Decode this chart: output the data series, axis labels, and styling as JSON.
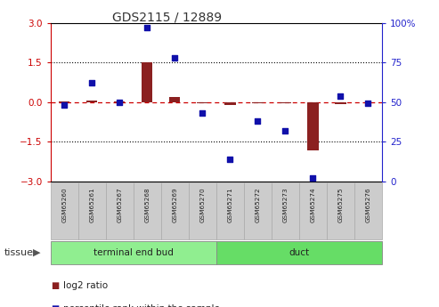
{
  "title": "GDS2115 / 12889",
  "samples": [
    "GSM65260",
    "GSM65261",
    "GSM65267",
    "GSM65268",
    "GSM65269",
    "GSM65270",
    "GSM65271",
    "GSM65272",
    "GSM65273",
    "GSM65274",
    "GSM65275",
    "GSM65276"
  ],
  "log2_ratio": [
    0.02,
    0.05,
    0.03,
    1.52,
    0.18,
    -0.05,
    -0.12,
    -0.05,
    -0.05,
    -1.85,
    -0.08,
    -0.02
  ],
  "percentile_rank": [
    48,
    62,
    50,
    97,
    78,
    43,
    14,
    38,
    32,
    2,
    54,
    49
  ],
  "groups": [
    {
      "label": "terminal end bud",
      "count": 6,
      "color": "#90EE90"
    },
    {
      "label": "duct",
      "count": 6,
      "color": "#66DD66"
    }
  ],
  "tissue_label": "tissue",
  "ylim_left": [
    -3,
    3
  ],
  "ylim_right": [
    0,
    100
  ],
  "yticks_left": [
    -3,
    -1.5,
    0,
    1.5,
    3
  ],
  "yticks_right": [
    0,
    25,
    50,
    75,
    100
  ],
  "hlines": [
    1.5,
    -1.5
  ],
  "bar_color": "#8B2020",
  "dot_color": "#1010AA",
  "hline_color": "#000000",
  "zero_line_color": "#CC0000",
  "left_axis_color": "#CC0000",
  "right_axis_color": "#2222CC",
  "sample_box_color": "#CCCCCC",
  "sample_box_edge": "#AAAAAA",
  "fig_width": 4.93,
  "fig_height": 3.45,
  "dpi": 100
}
